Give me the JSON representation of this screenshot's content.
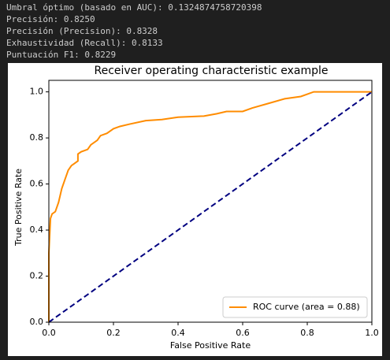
{
  "console": {
    "lines": [
      "Umbral óptimo (basado en AUC): 0.1324874758720398",
      "Precisión: 0.8250",
      "Precisión (Precision): 0.8328",
      "Exhaustividad (Recall): 0.8133",
      "Puntuación F1: 0.8229"
    ]
  },
  "chart_data": {
    "type": "line",
    "title": "Receiver operating characteristic example",
    "x_label": "False Positive Rate",
    "y_label": "True Positive Rate",
    "xlim": [
      0,
      1
    ],
    "ylim": [
      0,
      1.05
    ],
    "xticks": [
      {
        "value": 0,
        "label": "0.0"
      },
      0.2,
      0.4,
      0.6,
      0.8,
      {
        "value": 1,
        "label": "1.0"
      }
    ],
    "yticks": [
      {
        "value": 0,
        "label": "0.0"
      },
      0.2,
      0.4,
      0.6,
      0.8,
      {
        "value": 1,
        "label": "1.0"
      }
    ],
    "legend": "lower right",
    "series": [
      {
        "name": "ROC curve (area = 0.88)",
        "color": "#ff8c00",
        "dash": false,
        "x": [
          0,
          0,
          0.005,
          0.01,
          0.02,
          0.03,
          0.04,
          0.05,
          0.06,
          0.07,
          0.08,
          0.09,
          0.09,
          0.1,
          0.12,
          0.13,
          0.15,
          0.16,
          0.18,
          0.2,
          0.22,
          0.25,
          0.3,
          0.35,
          0.4,
          0.48,
          0.52,
          0.55,
          0.6,
          0.63,
          0.68,
          0.73,
          0.78,
          0.8,
          0.82,
          1
        ],
        "values": [
          0,
          0.3,
          0.45,
          0.47,
          0.48,
          0.52,
          0.58,
          0.62,
          0.66,
          0.68,
          0.69,
          0.7,
          0.73,
          0.74,
          0.75,
          0.77,
          0.79,
          0.81,
          0.82,
          0.84,
          0.85,
          0.86,
          0.875,
          0.88,
          0.89,
          0.895,
          0.905,
          0.915,
          0.915,
          0.93,
          0.95,
          0.97,
          0.98,
          0.99,
          1,
          1
        ]
      },
      {
        "color": "#000080",
        "dash": true,
        "x": [
          0,
          1
        ],
        "values": [
          0,
          1
        ]
      }
    ]
  }
}
